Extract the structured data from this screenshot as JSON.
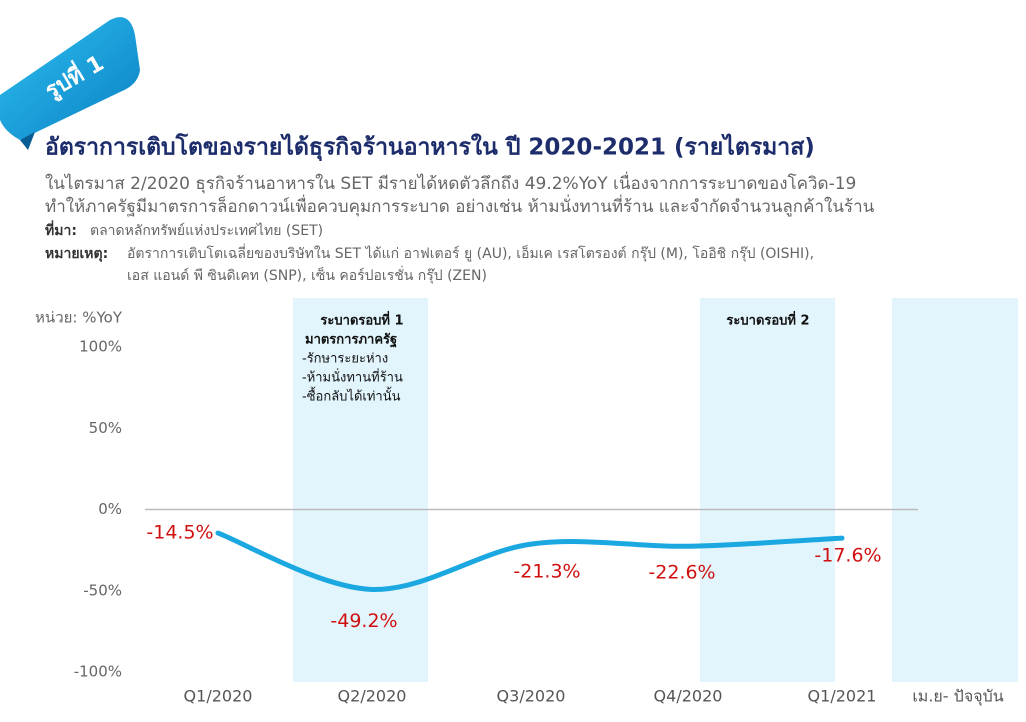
{
  "header": {
    "badge": "รูปที่ 1",
    "title": "อัตราการเติบโตของรายได้ธุรกิจร้านอาหารใน ปี 2020-2021 (รายไตรมาส)",
    "subtitle": [
      "ในไตรมาส 2/2020 ธุรกิจร้านอาหารใน SET มีรายได้หดตัวลึกถึง 49.2%YoY เนื่องจากการระบาดของโควิด-19",
      "ทำให้ภาครัฐมีมาตรการล็อกดาวน์เพื่อควบคุมการระบาด อย่างเช่น ห้ามนั่งทานที่ร้าน และจำกัดจำนวนลูกค้าในร้าน"
    ],
    "source_label": "ที่มา:",
    "source": "ตลาดหลักทรัพย์แห่งประเทศไทย (SET)",
    "note_label": "หมายเหตุ:",
    "note": [
      "อัตราการเติบโตเฉลี่ยของบริษัทใน SET ได้แก่ อาฟเตอร์ ยู (AU), เอ็มเค เรสโตรองต์ กรุ๊ป (M), โออิชิ กรุ๊ป (OISHI),",
      "เอส แอนด์ พี ซินดิเคท (SNP), เซ็น คอร์ปอเรชั่น กรุ๊ป (ZEN)"
    ]
  },
  "chart_data": {
    "type": "line",
    "unit_label": "หน่วย: %YoY",
    "categories": [
      "Q1/2020",
      "Q2/2020",
      "Q3/2020",
      "Q4/2020",
      "Q1/2021",
      "เม.ย- ปัจจุบัน"
    ],
    "values": [
      -14.5,
      -49.2,
      -21.3,
      -22.6,
      -17.6,
      null
    ],
    "value_labels": [
      "-14.5%",
      "-49.2%",
      "-21.3%",
      "-22.6%",
      "-17.6%",
      null
    ],
    "color": "#1ba8e1",
    "ylim": [
      -100,
      100
    ],
    "yticks": [
      {
        "value": 100,
        "label": "100%"
      },
      {
        "value": 50,
        "label": "50%"
      },
      {
        "value": 0,
        "label": "0%"
      },
      {
        "value": -50,
        "label": "-50%"
      },
      {
        "value": -100,
        "label": "-100%"
      }
    ],
    "annotations": [
      {
        "title": "ระบาดรอบที่ 1",
        "lines": [
          "มาตรการภาครัฐ",
          "-รักษาระยะห่าง",
          "-ห้ามนั่งทานที่ร้าน",
          "-ซื้อกลับได้เท่านั้น"
        ]
      },
      {
        "title": "ระบาดรอบที่ 2",
        "lines": []
      }
    ]
  }
}
